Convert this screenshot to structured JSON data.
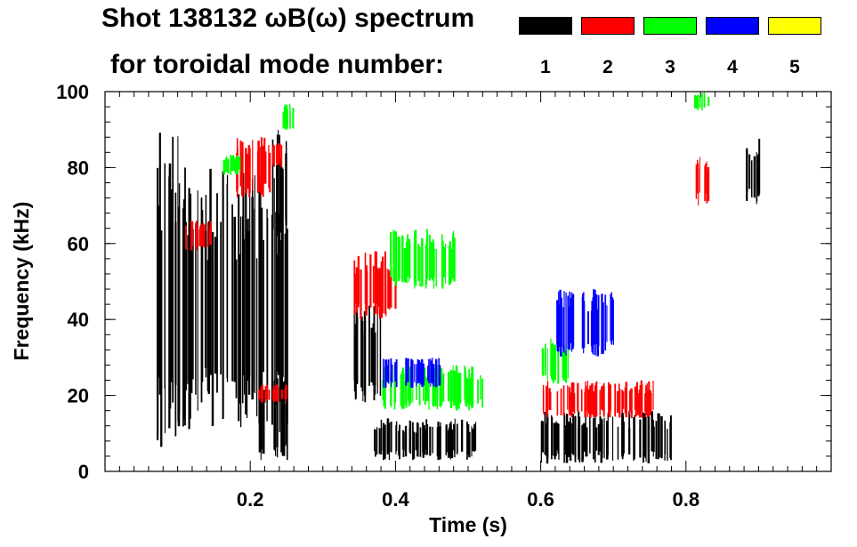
{
  "chart_data": {
    "type": "heatmap",
    "title": "Shot 138132 ωB(ω) spectrum",
    "subtitle": "for toroidal mode number:",
    "xlabel": "Time (s)",
    "ylabel": "Frequency (kHz)",
    "xlim": [
      0.0,
      1.0
    ],
    "ylim": [
      0,
      100
    ],
    "xticks": [
      0.2,
      0.4,
      0.6,
      0.8
    ],
    "xtick_labels": [
      "0.2",
      "0.4",
      "0.6",
      "0.8"
    ],
    "yticks": [
      0,
      20,
      40,
      60,
      80,
      100
    ],
    "ytick_labels": [
      "0",
      "20",
      "40",
      "60",
      "80",
      "100"
    ],
    "legend_placement": "top",
    "legend": [
      {
        "label": "1",
        "color": "#000000"
      },
      {
        "label": "2",
        "color": "#ff0000"
      },
      {
        "label": "3",
        "color": "#00ff00"
      },
      {
        "label": "4",
        "color": "#0000ff"
      },
      {
        "label": "5",
        "color": "#ffff00"
      }
    ],
    "regions": [
      {
        "mode": 1,
        "t": [
          0.07,
          0.1
        ],
        "f": [
          5,
          90
        ]
      },
      {
        "mode": 1,
        "t": [
          0.1,
          0.25
        ],
        "f": [
          10,
          80
        ]
      },
      {
        "mode": 1,
        "t": [
          0.21,
          0.25
        ],
        "f": [
          3,
          25
        ]
      },
      {
        "mode": 1,
        "t": [
          0.23,
          0.25
        ],
        "f": [
          60,
          90
        ]
      },
      {
        "mode": 2,
        "t": [
          0.18,
          0.23
        ],
        "f": [
          72,
          88
        ]
      },
      {
        "mode": 2,
        "t": [
          0.23,
          0.25
        ],
        "f": [
          80,
          87
        ]
      },
      {
        "mode": 2,
        "t": [
          0.11,
          0.15
        ],
        "f": [
          58,
          66
        ]
      },
      {
        "mode": 2,
        "t": [
          0.21,
          0.25
        ],
        "f": [
          18,
          23
        ]
      },
      {
        "mode": 3,
        "t": [
          0.24,
          0.26
        ],
        "f": [
          90,
          97
        ]
      },
      {
        "mode": 3,
        "t": [
          0.16,
          0.19
        ],
        "f": [
          78,
          84
        ]
      },
      {
        "mode": 1,
        "t": [
          0.34,
          0.38
        ],
        "f": [
          18,
          45
        ]
      },
      {
        "mode": 1,
        "t": [
          0.37,
          0.51
        ],
        "f": [
          3,
          14
        ]
      },
      {
        "mode": 2,
        "t": [
          0.34,
          0.4
        ],
        "f": [
          40,
          58
        ]
      },
      {
        "mode": 3,
        "t": [
          0.39,
          0.48
        ],
        "f": [
          48,
          64
        ]
      },
      {
        "mode": 3,
        "t": [
          0.38,
          0.52
        ],
        "f": [
          16,
          28
        ]
      },
      {
        "mode": 4,
        "t": [
          0.38,
          0.46
        ],
        "f": [
          22,
          30
        ]
      },
      {
        "mode": 1,
        "t": [
          0.6,
          0.78
        ],
        "f": [
          2,
          16
        ]
      },
      {
        "mode": 2,
        "t": [
          0.6,
          0.76
        ],
        "f": [
          14,
          24
        ]
      },
      {
        "mode": 3,
        "t": [
          0.6,
          0.64
        ],
        "f": [
          23,
          35
        ]
      },
      {
        "mode": 4,
        "t": [
          0.62,
          0.7
        ],
        "f": [
          30,
          48
        ]
      },
      {
        "mode": 1,
        "t": [
          0.88,
          0.9
        ],
        "f": [
          70,
          88
        ]
      },
      {
        "mode": 2,
        "t": [
          0.81,
          0.83
        ],
        "f": [
          70,
          84
        ]
      },
      {
        "mode": 3,
        "t": [
          0.81,
          0.83
        ],
        "f": [
          95,
          100
        ]
      }
    ]
  }
}
